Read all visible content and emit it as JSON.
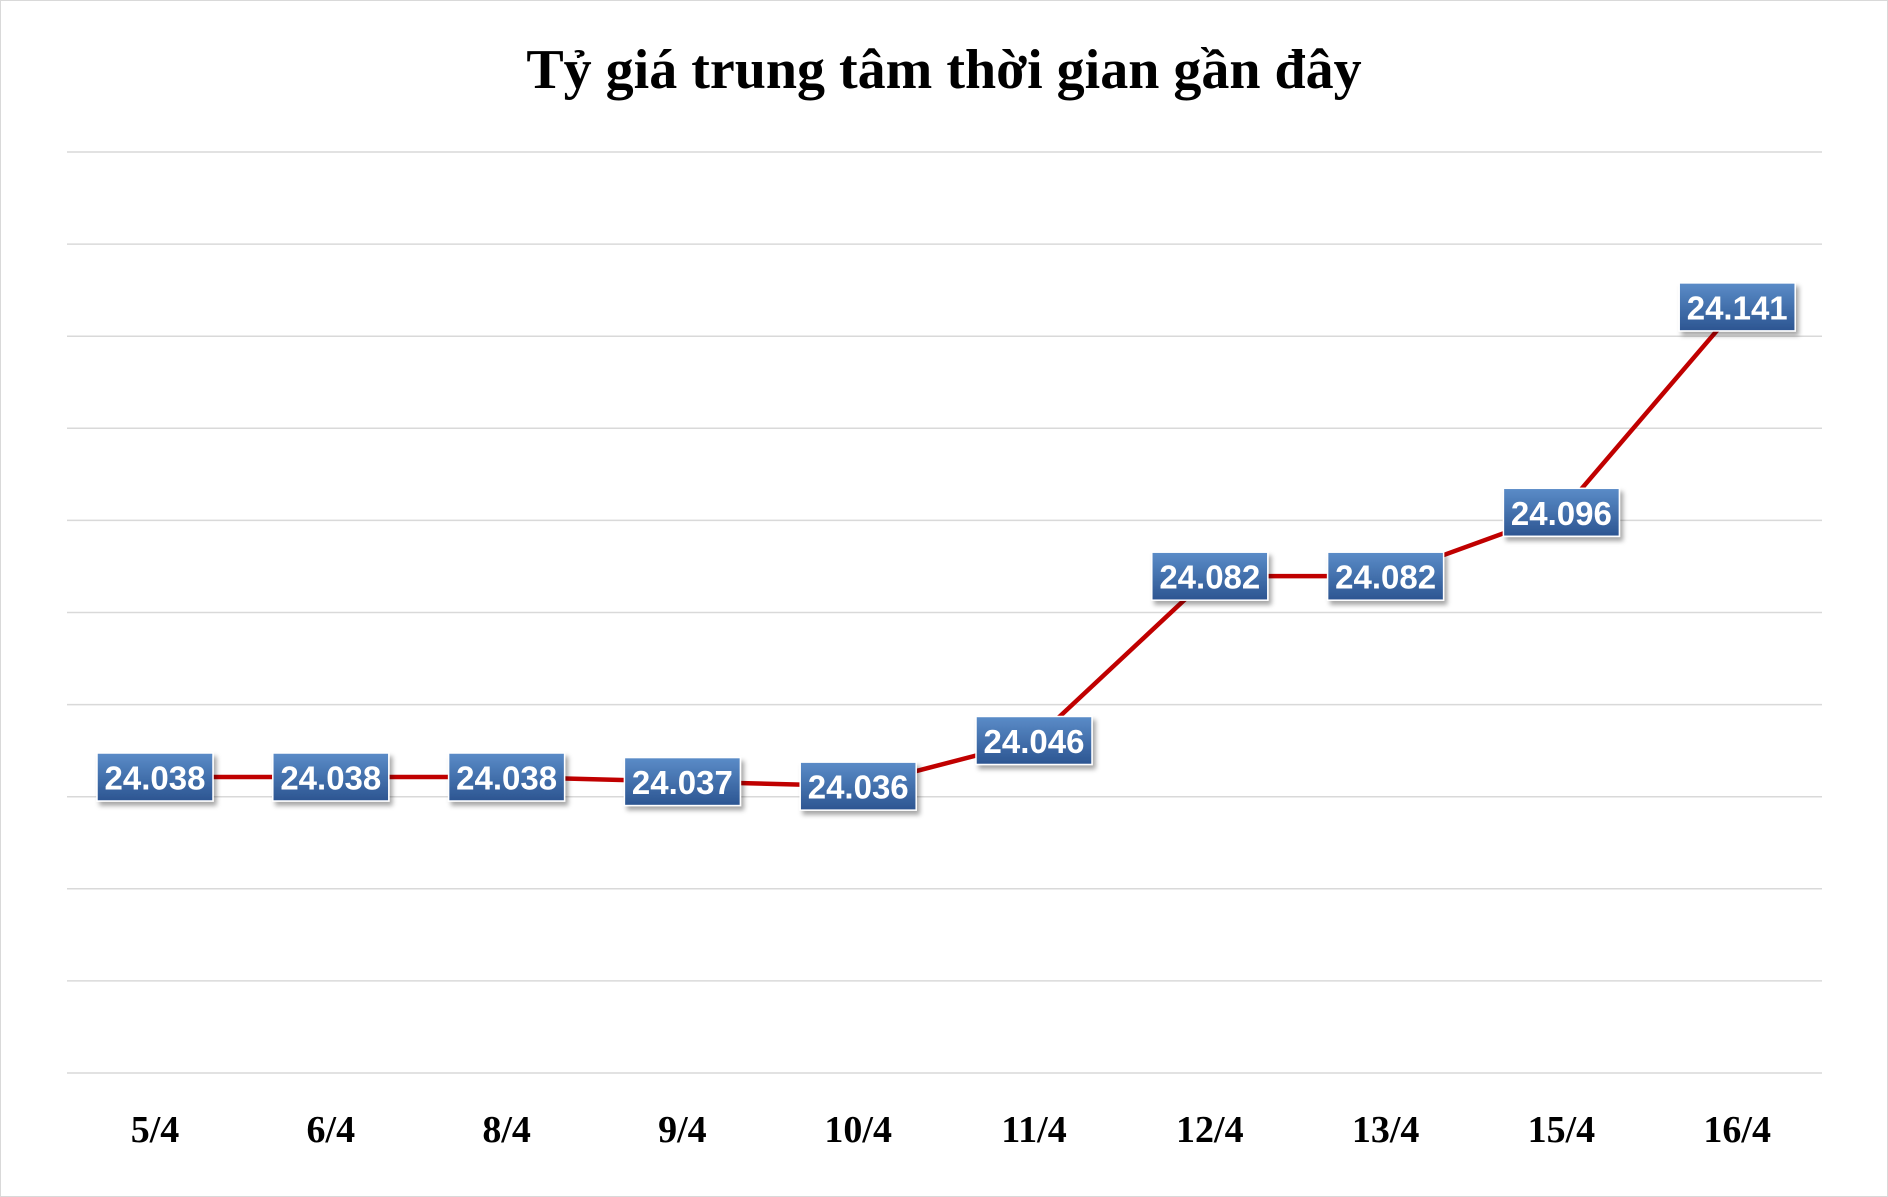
{
  "title": "Tỷ giá trung tâm thời gian gần đây",
  "chart_data": {
    "type": "line",
    "title": "Tỷ giá trung tâm thời gian gần đây",
    "xlabel": "",
    "ylabel": "",
    "categories": [
      "5/4",
      "6/4",
      "8/4",
      "9/4",
      "10/4",
      "11/4",
      "12/4",
      "13/4",
      "15/4",
      "16/4"
    ],
    "series": [
      {
        "values": [
          24.038,
          24.038,
          24.038,
          24.037,
          24.036,
          24.046,
          24.082,
          24.082,
          24.096,
          24.141
        ],
        "labels": [
          "24.038",
          "24.038",
          "24.038",
          "24.037",
          "24.036",
          "24.046",
          "24.082",
          "24.082",
          "24.096",
          "24.141"
        ]
      }
    ],
    "grid": true,
    "legend": "none",
    "colors": {
      "line": "#c00000",
      "label_box_top": "#5b8cc8",
      "label_box_bottom": "#2c5591",
      "label_text": "#ffffff",
      "grid": "#d9d9d9"
    }
  }
}
